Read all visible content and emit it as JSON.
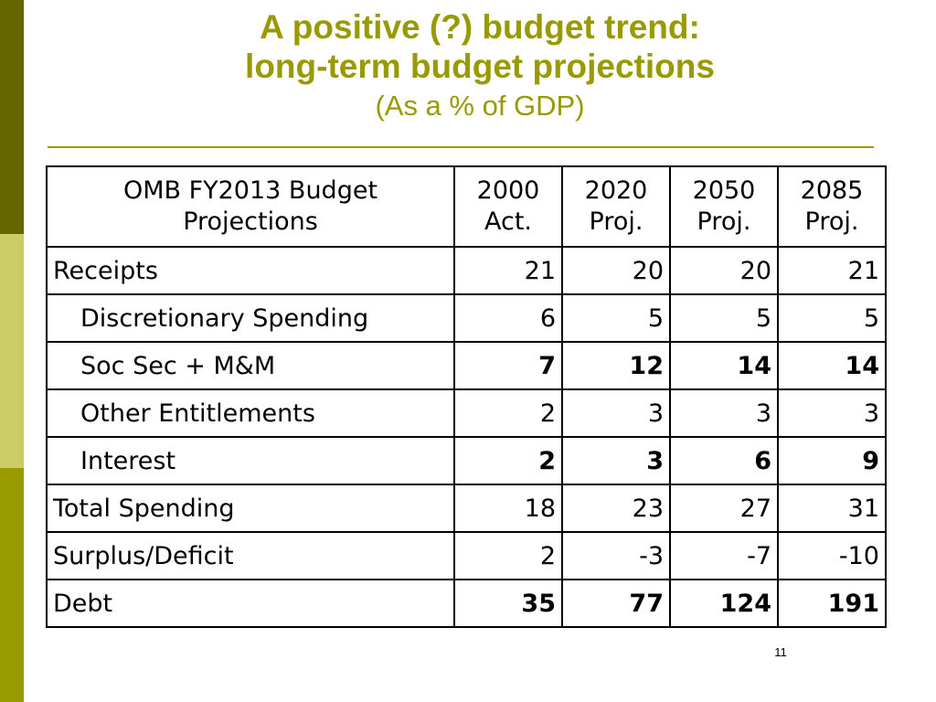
{
  "colors": {
    "accent": "#999900",
    "sidebar_dark": "#666600",
    "sidebar_light": "#cccc66",
    "sidebar_mid": "#999900"
  },
  "title": {
    "line1": "A positive (?) budget trend:",
    "line2": "long-term budget projections",
    "subtitle": "(As a % of GDP)"
  },
  "table": {
    "header": {
      "label_line1": "OMB FY2013 Budget",
      "label_line2": "Projections",
      "columns": [
        {
          "line1": "2000",
          "line2": "Act."
        },
        {
          "line1": "2020",
          "line2": "Proj."
        },
        {
          "line1": "2050",
          "line2": "Proj."
        },
        {
          "line1": "2085",
          "line2": "Proj."
        }
      ]
    },
    "rows": [
      {
        "label": "Receipts",
        "values": [
          "21",
          "20",
          "20",
          "21"
        ]
      },
      {
        "label": "Discretionary Spending",
        "values": [
          "6",
          "5",
          "5",
          "5"
        ]
      },
      {
        "label": "Soc Sec + M&M",
        "values": [
          "7",
          "12",
          "14",
          "14"
        ]
      },
      {
        "label": "Other Entitlements",
        "values": [
          "2",
          "3",
          "3",
          "3"
        ]
      },
      {
        "label": "Interest",
        "values": [
          "2",
          "3",
          "6",
          "9"
        ]
      },
      {
        "label": "Total Spending",
        "values": [
          "18",
          "23",
          "27",
          "31"
        ]
      },
      {
        "label": "Surplus/Deficit",
        "values": [
          "2",
          "-3",
          "-7",
          "-10"
        ]
      },
      {
        "label": "Debt",
        "values": [
          "35",
          "77",
          "124",
          "191"
        ]
      }
    ]
  },
  "page_number": "11"
}
